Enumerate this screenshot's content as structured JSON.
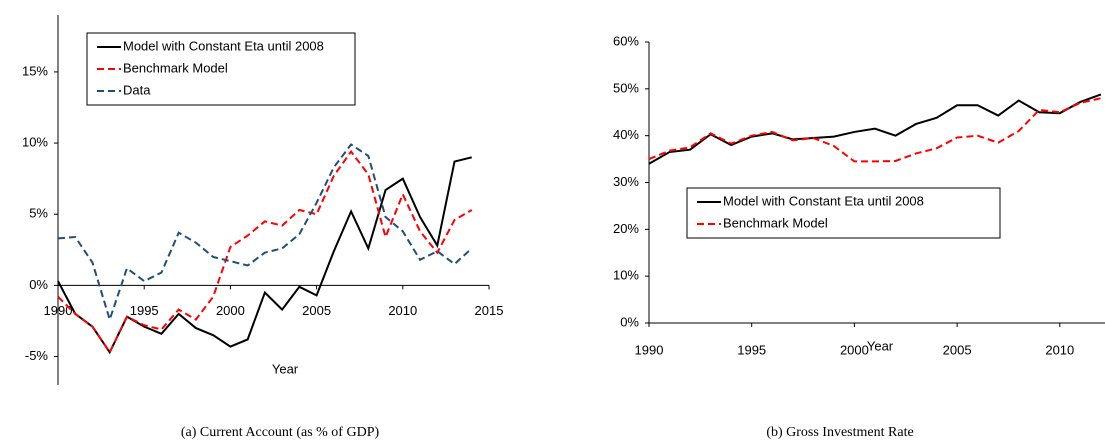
{
  "chart_data": [
    {
      "type": "line",
      "caption": "(a) Current Account (as % of GDP)",
      "x_label": "Year",
      "x": [
        1990,
        1991,
        1992,
        1993,
        1994,
        1995,
        1996,
        1997,
        1998,
        1999,
        2000,
        2001,
        2002,
        2003,
        2004,
        2005,
        2006,
        2007,
        2008,
        2009,
        2010,
        2011,
        2012,
        2013,
        2014
      ],
      "series": [
        {
          "name": "Model with Constant Eta until 2008",
          "color": "#000000",
          "dash": "solid",
          "values": [
            0.3,
            -2.0,
            -2.9,
            -4.7,
            -2.2,
            -2.9,
            -3.4,
            -2.0,
            -3.0,
            -3.5,
            -4.3,
            -3.8,
            -0.5,
            -1.7,
            -0.1,
            -0.7,
            2.4,
            5.2,
            2.6,
            6.7,
            7.5,
            4.8,
            2.8,
            8.7,
            9.0
          ]
        },
        {
          "name": "Benchmark Model",
          "color": "#ff0000",
          "dash": "dashed",
          "values": [
            -0.8,
            -2.0,
            -2.9,
            -4.7,
            -2.2,
            -2.8,
            -3.1,
            -1.7,
            -2.4,
            -0.8,
            2.7,
            3.5,
            4.5,
            4.2,
            5.3,
            5.0,
            7.7,
            9.4,
            7.8,
            3.4,
            6.4,
            3.8,
            2.3,
            4.6,
            5.3
          ]
        },
        {
          "name": "Data",
          "color": "#1f4e79",
          "dash": "dashed",
          "values": [
            3.3,
            3.4,
            1.6,
            -2.4,
            1.2,
            0.3,
            0.9,
            3.7,
            3.0,
            2.0,
            1.7,
            1.4,
            2.3,
            2.6,
            3.6,
            5.8,
            8.3,
            9.9,
            9.1,
            4.8,
            3.8,
            1.8,
            2.4,
            1.5,
            2.6
          ]
        }
      ],
      "xlim": [
        1990,
        2015
      ],
      "xticks": [
        1990,
        1995,
        2000,
        2005,
        2010,
        2015
      ],
      "ylim": [
        -7,
        19
      ],
      "yticks": [
        {
          "value": -5,
          "label": "-5%"
        },
        {
          "value": 0,
          "label": "0%"
        },
        {
          "value": 5,
          "label": "5%"
        },
        {
          "value": 10,
          "label": "10%"
        },
        {
          "value": 15,
          "label": "15%"
        }
      ],
      "grid": false,
      "legend": "upper left"
    },
    {
      "type": "line",
      "caption": "(b) Gross Investment Rate",
      "x_label": "Year",
      "x": [
        1990,
        1991,
        1992,
        1993,
        1994,
        1995,
        1996,
        1997,
        1998,
        1999,
        2000,
        2001,
        2002,
        2003,
        2004,
        2005,
        2006,
        2007,
        2008,
        2009,
        2010,
        2011,
        2012
      ],
      "series": [
        {
          "name": "Model with Constant Eta until 2008",
          "color": "#000000",
          "dash": "solid",
          "values": [
            34,
            36.5,
            37,
            40.3,
            38,
            39.8,
            40.5,
            39.2,
            39.5,
            39.8,
            40.8,
            41.5,
            40,
            42.5,
            43.8,
            46.5,
            46.5,
            44.3,
            47.5,
            45,
            44.8,
            47.2,
            48.8
          ]
        },
        {
          "name": "Benchmark Model",
          "color": "#ff0000",
          "dash": "dashed",
          "values": [
            35,
            36.8,
            37.5,
            40.5,
            38.3,
            40,
            40.8,
            39,
            39.5,
            37.8,
            34.5,
            34.5,
            34.6,
            36.2,
            37.3,
            39.6,
            40,
            38.5,
            41,
            45.5,
            45,
            47,
            48
          ]
        }
      ],
      "xlim": [
        1990,
        2012.2
      ],
      "xticks": [
        1990,
        1995,
        2000,
        2005,
        2010
      ],
      "ylim": [
        0,
        60
      ],
      "yticks": [
        {
          "value": 0,
          "label": "0%"
        },
        {
          "value": 10,
          "label": "10%"
        },
        {
          "value": 20,
          "label": "20%"
        },
        {
          "value": 30,
          "label": "30%"
        },
        {
          "value": 40,
          "label": "40%"
        },
        {
          "value": 50,
          "label": "50%"
        },
        {
          "value": 60,
          "label": "60%"
        }
      ],
      "grid": false,
      "legend": "center left"
    }
  ]
}
